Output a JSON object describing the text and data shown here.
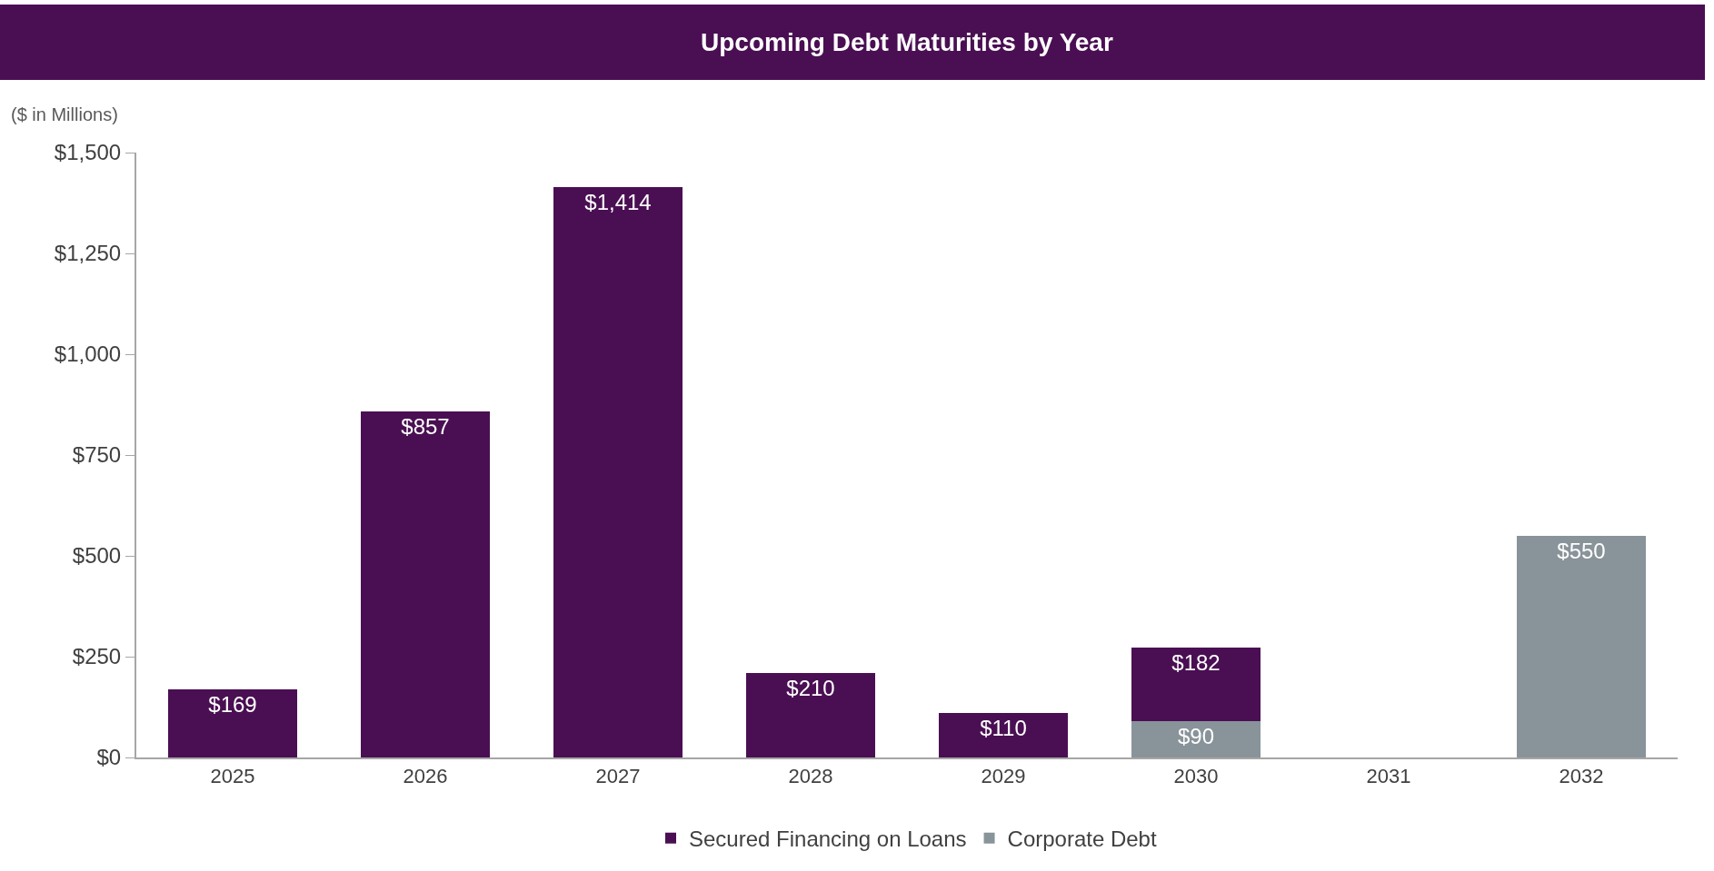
{
  "chart_data": {
    "type": "bar",
    "title": "Upcoming Debt Maturities by Year",
    "ylabel": "($ in Millions)",
    "categories": [
      "2025",
      "2026",
      "2027",
      "2028",
      "2029",
      "2030",
      "2031",
      "2032"
    ],
    "stacked": true,
    "series": [
      {
        "name": "Corporate Debt",
        "color": "#89939a",
        "values": [
          null,
          null,
          null,
          null,
          null,
          90,
          null,
          550
        ],
        "value_labels": [
          null,
          null,
          null,
          null,
          null,
          "$90",
          null,
          "$550"
        ]
      },
      {
        "name": "Secured Financing on Loans",
        "color": "#4a0f53",
        "values": [
          169,
          857,
          1414,
          210,
          110,
          182,
          null,
          null
        ],
        "value_labels": [
          "$169",
          "$857",
          "$1,414",
          "$210",
          "$110",
          "$182",
          null,
          null
        ]
      }
    ],
    "ylim": [
      0,
      1500
    ],
    "yticks": [
      {
        "value": 0,
        "label": "$0"
      },
      {
        "value": 250,
        "label": "$250"
      },
      {
        "value": 500,
        "label": "$500"
      },
      {
        "value": 750,
        "label": "$750"
      },
      {
        "value": 1000,
        "label": "$1,000"
      },
      {
        "value": 1250,
        "label": "$1,250"
      },
      {
        "value": 1500,
        "label": "$1,500"
      }
    ],
    "grid": false,
    "legend": "bottom"
  }
}
